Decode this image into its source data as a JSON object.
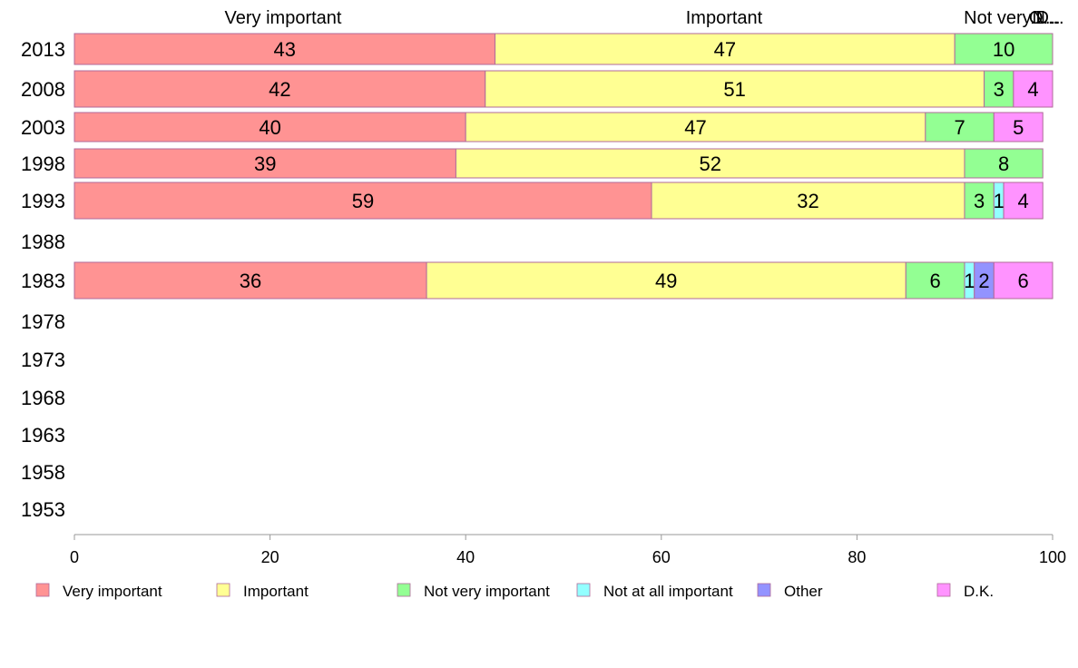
{
  "chart_data": {
    "type": "bar",
    "orientation": "horizontal",
    "stacked": true,
    "title": "",
    "xlabel": "",
    "ylabel": "",
    "xlim": [
      0,
      100
    ],
    "x_ticks": [
      "0",
      "20",
      "40",
      "60",
      "80",
      "100"
    ],
    "categories": [
      "2013",
      "2008",
      "2003",
      "1998",
      "1993",
      "1988",
      "1983",
      "1978",
      "1973",
      "1968",
      "1963",
      "1958",
      "1953"
    ],
    "series": [
      {
        "name": "Very important",
        "color": "#ff9393",
        "values": [
          43,
          42,
          40,
          39,
          59,
          null,
          36,
          null,
          null,
          null,
          null,
          null,
          null
        ]
      },
      {
        "name": "Important",
        "color": "#ffff93",
        "values": [
          47,
          51,
          47,
          52,
          32,
          null,
          49,
          null,
          null,
          null,
          null,
          null,
          null
        ]
      },
      {
        "name": "Not very important",
        "color": "#93ff93",
        "values": [
          10,
          3,
          7,
          8,
          3,
          null,
          6,
          null,
          null,
          null,
          null,
          null,
          null
        ]
      },
      {
        "name": "Not at all important",
        "color": "#93ffff",
        "values": [
          0,
          0,
          0,
          0,
          1,
          null,
          1,
          null,
          null,
          null,
          null,
          null,
          null
        ]
      },
      {
        "name": "Other",
        "color": "#9393ff",
        "values": [
          0,
          0,
          0,
          0,
          0,
          null,
          2,
          null,
          null,
          null,
          null,
          null,
          null
        ]
      },
      {
        "name": "D.K.",
        "color": "#ff93ff",
        "values": [
          0,
          4,
          5,
          0,
          4,
          null,
          6,
          null,
          null,
          null,
          null,
          null,
          null
        ]
      }
    ],
    "top_headers": [
      "Very important",
      "Important",
      "Not very...",
      "N...",
      "O...",
      "D..."
    ],
    "legend_position": "bottom",
    "grid": false
  }
}
